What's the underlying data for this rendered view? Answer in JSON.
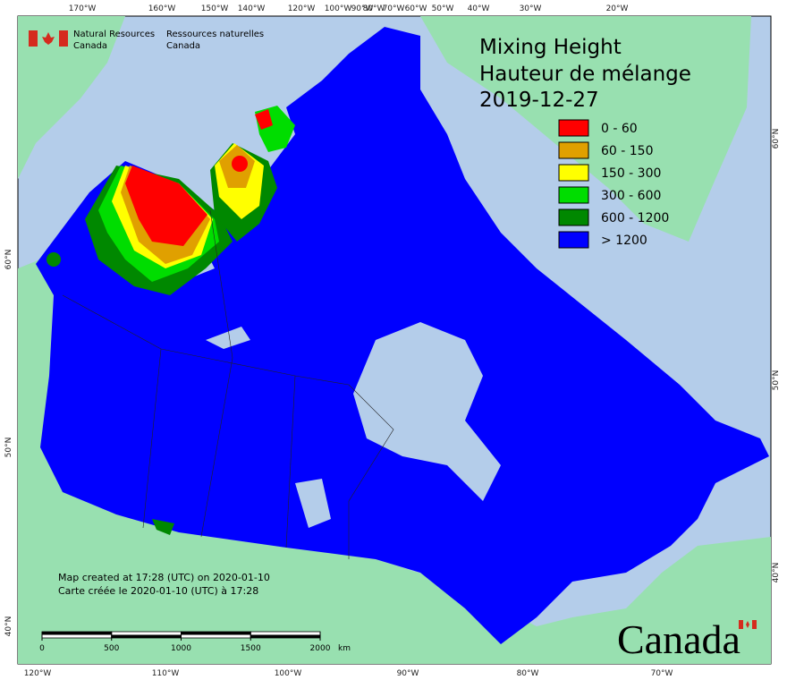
{
  "header": {
    "department_en": [
      "Natural Resources",
      "Canada"
    ],
    "department_fr": [
      "Ressources naturelles",
      "Canada"
    ]
  },
  "title": {
    "line1": "Mixing Height",
    "line2": "Hauteur de mélange",
    "date": "2019-12-27"
  },
  "legend": [
    {
      "label": "0 - 60",
      "color": "#ff0000"
    },
    {
      "label": "60 - 150",
      "color": "#e0a000"
    },
    {
      "label": "150 - 300",
      "color": "#ffff00"
    },
    {
      "label": "300 - 600",
      "color": "#00dd00"
    },
    {
      "label": "600 - 1200",
      "color": "#008800"
    },
    {
      "label": "> 1200",
      "color": "#0000ff"
    }
  ],
  "graticule": {
    "top": [
      "170°W",
      "160°W",
      "150°W",
      "140°W",
      "120°W",
      "100°W",
      "90°W",
      "80°W",
      "70°W",
      "60°W",
      "50°W",
      "40°W",
      "30°W",
      "20°W"
    ],
    "bottom": [
      "120°W",
      "110°W",
      "100°W",
      "90°W",
      "80°W",
      "70°W"
    ],
    "left": [
      "60°N",
      "50°N",
      "40°N"
    ],
    "right": [
      "60°N",
      "50°N",
      "40°N"
    ]
  },
  "footer": {
    "created_en": "Map created at 17:28 (UTC) on 2020-01-10",
    "created_fr": "Carte créée le 2020-01-10 (UTC) à 17:28"
  },
  "scale_bar": {
    "ticks": [
      0,
      500,
      1000,
      1500,
      2000
    ],
    "unit": "km"
  },
  "wordmark": "Canada"
}
